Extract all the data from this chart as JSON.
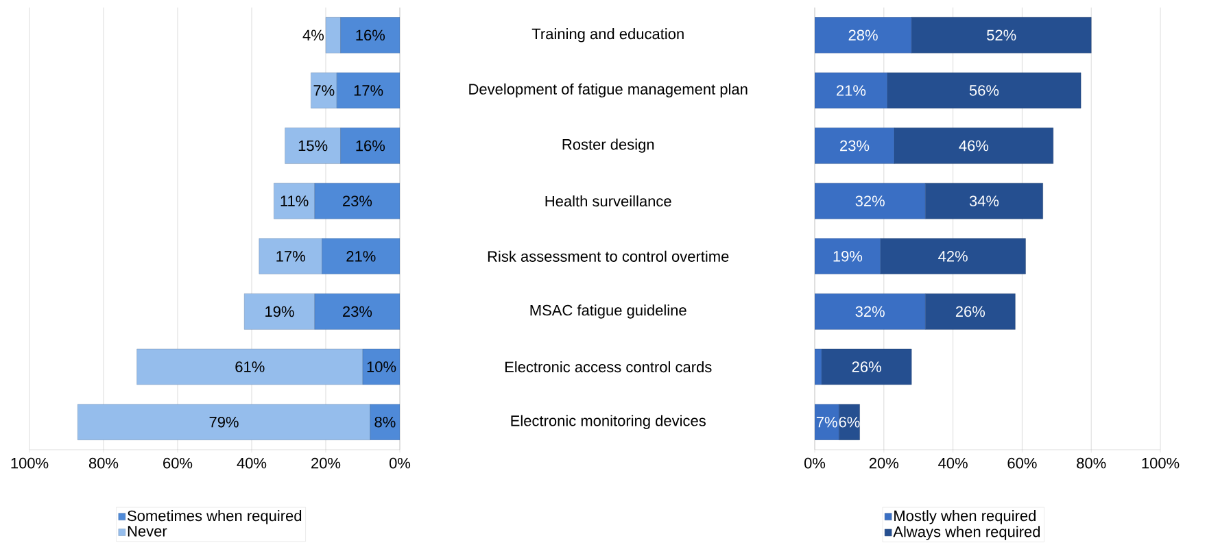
{
  "chart_data": [
    {
      "type": "bar",
      "orientation": "horizontal",
      "stacked": true,
      "series": [
        {
          "name": "Sometimes when required",
          "color": "#4f8ad8",
          "values": [
            16,
            17,
            16,
            23,
            21,
            23,
            10,
            8
          ],
          "value_labels": [
            "16%",
            "17%",
            "16%",
            "23%",
            "21%",
            "23%",
            "10%",
            "8%"
          ]
        },
        {
          "name": "Never",
          "color": "#95bdec",
          "values": [
            4,
            7,
            15,
            11,
            17,
            19,
            61,
            79
          ],
          "value_labels": [
            "4%",
            "7%",
            "15%",
            "11%",
            "17%",
            "19%",
            "61%",
            "79%"
          ]
        }
      ],
      "xlim": [
        100,
        0
      ],
      "xticks": [
        {
          "value": 100,
          "label": "100%"
        },
        {
          "value": 80,
          "label": "80%"
        },
        {
          "value": 60,
          "label": "60%"
        },
        {
          "value": 40,
          "label": "40%"
        },
        {
          "value": 20,
          "label": "20%"
        },
        {
          "value": 0,
          "label": "0%"
        }
      ],
      "grid": "x",
      "legend": "bottom",
      "tick_labels": "x"
    },
    {
      "type": "bar",
      "orientation": "horizontal",
      "stacked": true,
      "categories": [
        "Training and education",
        "Development of fatigue management plan",
        "Roster design",
        "Health surveillance",
        "Risk assessment to control overtime",
        "MSAC fatigue guideline",
        "Electronic access control cards",
        "Electronic monitoring devices"
      ],
      "series": [
        {
          "name": "Mostly when required",
          "color": "#3a6fc4",
          "values": [
            28,
            21,
            23,
            32,
            19,
            32,
            2,
            7
          ],
          "value_labels": [
            "28%",
            "21%",
            "23%",
            "32%",
            "19%",
            "32%",
            null,
            "7%"
          ]
        },
        {
          "name": "Always when required",
          "color": "#254f90",
          "values": [
            52,
            56,
            46,
            34,
            42,
            26,
            26,
            6
          ],
          "value_labels": [
            "52%",
            "56%",
            "46%",
            "34%",
            "42%",
            "26%",
            "26%",
            "6%"
          ]
        }
      ],
      "xlim": [
        0,
        100
      ],
      "xticks": [
        {
          "value": 0,
          "label": "0%"
        },
        {
          "value": 20,
          "label": "20%"
        },
        {
          "value": 40,
          "label": "40%"
        },
        {
          "value": 60,
          "label": "60%"
        },
        {
          "value": 80,
          "label": "80%"
        },
        {
          "value": 100,
          "label": "100%"
        }
      ],
      "grid": "x",
      "legend": "bottom"
    }
  ]
}
